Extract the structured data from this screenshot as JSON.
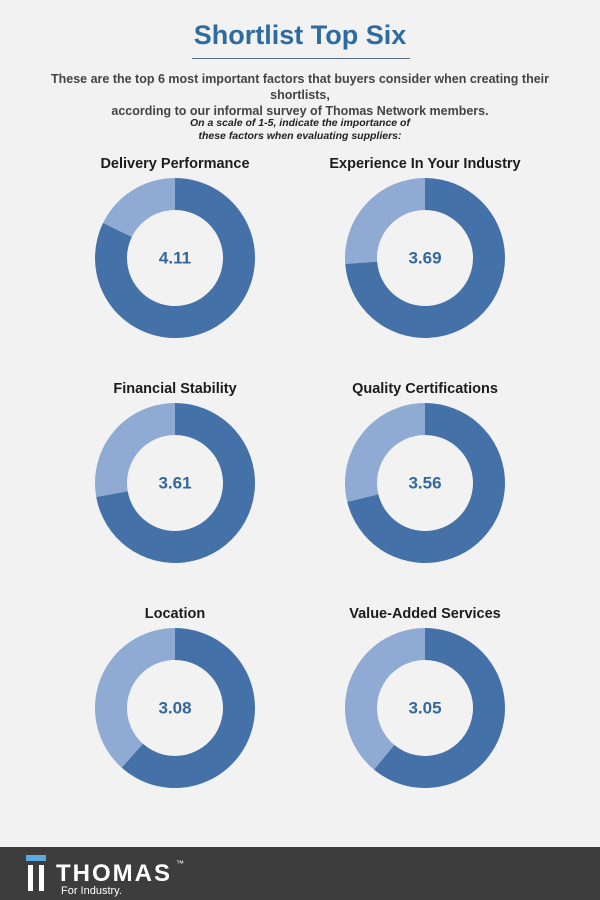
{
  "header": {
    "title": "Shortlist Top Six",
    "intro_line1": "These are the top 6 most important factors that buyers consider when creating their shortlists,",
    "intro_line2": "according to our informal survey of Thomas Network members.",
    "question_line1": "On a scale of 1-5, indicate the importance of",
    "question_line2": "these factors when evaluating suppliers:"
  },
  "colors": {
    "accent_dark": "#4472a8",
    "accent_light": "#8faad3",
    "title": "#2e6b9e",
    "value_text": "#35689a",
    "footer_bg": "#3d3d3d"
  },
  "chart_data": {
    "type": "donut",
    "scale_max": 5,
    "items": [
      {
        "label": "Delivery Performance",
        "value": 4.11,
        "display": "4.11"
      },
      {
        "label": "Experience In Your Industry",
        "value": 3.69,
        "display": "3.69"
      },
      {
        "label": "Financial Stability",
        "value": 3.61,
        "display": "3.61"
      },
      {
        "label": "Quality Certifications",
        "value": 3.56,
        "display": "3.56"
      },
      {
        "label": "Location",
        "value": 3.08,
        "display": "3.08"
      },
      {
        "label": "Value-Added Services",
        "value": 3.05,
        "display": "3.05"
      }
    ]
  },
  "footer": {
    "logo_icon": "thomas-logo-icon",
    "brand": "THOMAS",
    "trademark": "™",
    "tagline": "For Industry."
  }
}
